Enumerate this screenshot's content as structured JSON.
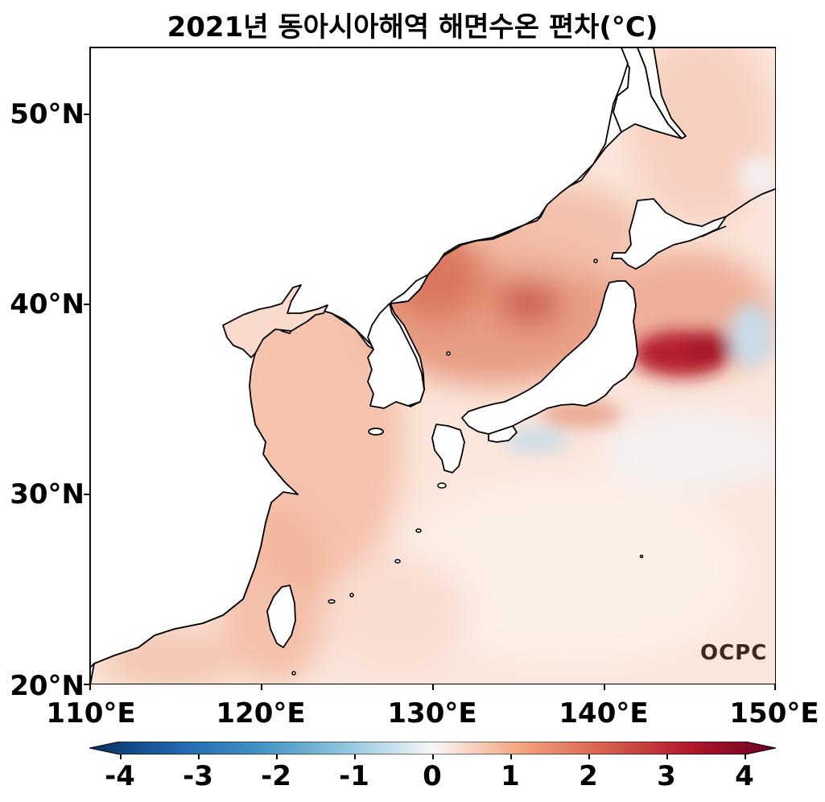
{
  "title": "2021년 동아시아해역 해면수온 편차(°C)",
  "axes": {
    "lat_labels": [
      "20°N",
      "30°N",
      "40°N",
      "50°N"
    ],
    "lon_labels": [
      "110°E",
      "120°E",
      "130°E",
      "140°E",
      "150°E"
    ],
    "lat_range": [
      20,
      53.5
    ],
    "lon_range": [
      110,
      150
    ]
  },
  "colorbar": {
    "labels": [
      "-4",
      "-3",
      "-2",
      "-1",
      "0",
      "1",
      "2",
      "3",
      "4"
    ],
    "range": [
      -4,
      4
    ],
    "colors": [
      "#053061",
      "#2166ac",
      "#4393c3",
      "#92c5de",
      "#f7f7f7",
      "#f4a582",
      "#d6604d",
      "#b2182b",
      "#67001f"
    ]
  },
  "logo_text": "OCPC",
  "colors": {
    "land": "#ffffff",
    "coast": "#000000",
    "warm_hot": "#b2182b",
    "warm_mid": "#e08a70",
    "warm_light": "#f8d4c4",
    "cool": "#c6dcea"
  }
}
